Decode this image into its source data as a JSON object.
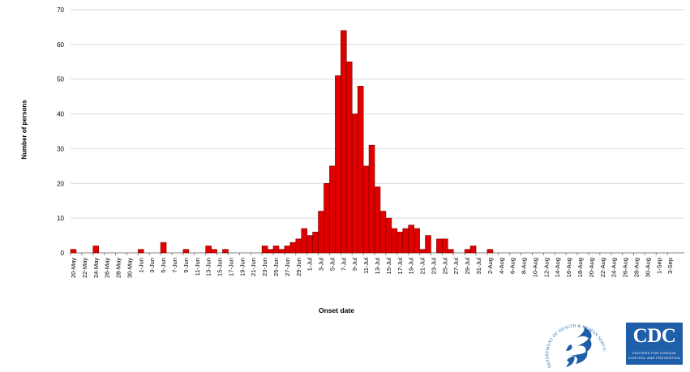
{
  "chart_data": {
    "type": "bar",
    "title": "",
    "xlabel": "Onset date",
    "ylabel": "Number of persons",
    "ylim": [
      0,
      70
    ],
    "yticks": [
      0,
      10,
      20,
      30,
      40,
      50,
      60,
      70
    ],
    "grid": true,
    "legend": "none",
    "bar_color": "#e00000",
    "bar_edge_color": "#7a0000",
    "grid_color": "#d9d9d9",
    "x_start": "20-May",
    "x_end": "4-Sep",
    "tick_labels": [
      "20-May",
      "22-May",
      "24-May",
      "26-May",
      "28-May",
      "30-May",
      "1-Jun",
      "3-Jun",
      "5-Jun",
      "7-Jun",
      "9-Jun",
      "11-Jun",
      "13-Jun",
      "15-Jun",
      "17-Jun",
      "19-Jun",
      "21-Jun",
      "23-Jun",
      "25-Jun",
      "27-Jun",
      "29-Jun",
      "1-Jul",
      "3-Jul",
      "5-Jul",
      "7-Jul",
      "9-Jul",
      "11-Jul",
      "13-Jul",
      "15-Jul",
      "17-Jul",
      "19-Jul",
      "21-Jul",
      "23-Jul",
      "25-Jul",
      "27-Jul",
      "29-Jul",
      "31-Jul",
      "2-Aug",
      "4-Aug",
      "6-Aug",
      "8-Aug",
      "10-Aug",
      "12-Aug",
      "14-Aug",
      "16-Aug",
      "18-Aug",
      "20-Aug",
      "22-Aug",
      "24-Aug",
      "26-Aug",
      "28-Aug",
      "30-Aug",
      "1-Sep",
      "3-Sep"
    ],
    "series": [
      {
        "values": [
          1,
          0,
          0,
          0,
          2,
          0,
          0,
          0,
          0,
          0,
          0,
          0,
          1,
          0,
          0,
          0,
          3,
          0,
          0,
          0,
          1,
          0,
          0,
          0,
          2,
          1,
          0,
          1,
          0,
          0,
          0,
          0,
          0,
          0,
          2,
          1,
          2,
          1,
          2,
          3,
          4,
          7,
          5,
          6,
          12,
          20,
          25,
          51,
          64,
          55,
          40,
          48,
          25,
          31,
          19,
          12,
          10,
          7,
          6,
          7,
          8,
          7,
          1,
          5,
          0,
          4,
          4,
          1,
          0,
          0,
          1,
          2,
          0,
          0,
          1,
          0,
          0,
          0,
          0,
          0,
          0,
          0,
          0,
          0,
          0,
          0,
          0,
          0,
          0,
          0,
          0,
          0,
          0,
          0,
          0,
          0,
          0,
          0,
          0,
          0,
          0,
          0,
          0,
          0,
          0,
          0,
          0,
          0,
          0
        ]
      }
    ]
  },
  "logos": {
    "hhs_text": "DEPARTMENT OF HEALTH & HUMAN SERVICES USA",
    "cdc_text": "CDC",
    "cdc_subtitle_line1": "CENTERS FOR DISEASE",
    "cdc_subtitle_line2": "CONTROL AND PREVENTION"
  }
}
